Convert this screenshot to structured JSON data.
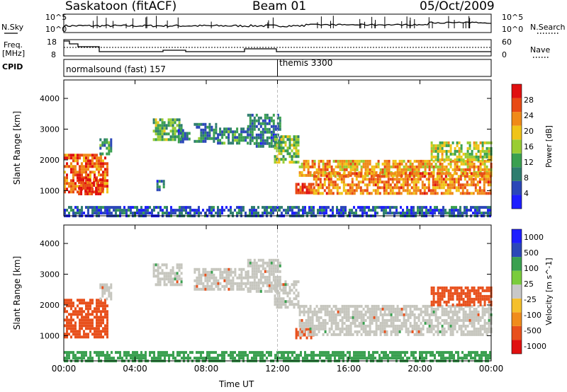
{
  "header": {
    "station": "Saskatoon (fitACF)",
    "beam": "Beam 01",
    "date": "05/Oct/2009"
  },
  "panels": {
    "nsky_label": "N.Sky",
    "nsearch_label": "N.Search",
    "freq_label_1": "Freq.",
    "freq_label_2": "[MHz]",
    "nave_label": "Nave",
    "cpid_label": "CPID",
    "noise_left_ticks": [
      "10^5",
      "10^0"
    ],
    "noise_right_ticks": [
      "10^5",
      "10^0"
    ],
    "freq_left_ticks": [
      "18",
      "8"
    ],
    "freq_right_ticks": [
      "60",
      "0"
    ],
    "cpid_segments": [
      {
        "start_hour": 0,
        "end_hour": 12,
        "text": "normalsound (fast) 157"
      },
      {
        "start_hour": 12,
        "end_hour": 24,
        "text": "themis 3300"
      }
    ]
  },
  "colors": {
    "power_scale": [
      "#1e1eff",
      "#2b47b8",
      "#2e7d6e",
      "#3aa050",
      "#9acd32",
      "#f0c418",
      "#f08a18",
      "#e84a14",
      "#e01010"
    ],
    "velocity_scale": [
      "#e01010",
      "#e8501c",
      "#f08c1c",
      "#f5c02c",
      "#c8c8c8",
      "#7acc3c",
      "#3aa050",
      "#2b47b8",
      "#1e1eff"
    ],
    "ground_scatter": "#c6c6be"
  },
  "chart_data": [
    {
      "type": "heatmap",
      "title": "",
      "xlabel": "Time UT",
      "ylabel": "Slant Range [km]",
      "xlim_hours": [
        0,
        24
      ],
      "ylim_km": [
        180,
        4600
      ],
      "x_ticks": [
        "00:00",
        "04:00",
        "08:00",
        "12:00",
        "16:00",
        "20:00",
        "00:00"
      ],
      "y_ticks": [
        "1000",
        "2000",
        "3000",
        "4000"
      ],
      "colorbar_label": "Power [dB]",
      "colorbar_ticks": [
        "4",
        "8",
        "12",
        "16",
        "20",
        "24",
        "28"
      ],
      "colorbar_range": [
        0,
        30
      ],
      "regions": [
        {
          "t0": 0.0,
          "t1": 2.4,
          "r0": 950,
          "r1": 2200,
          "value": 24
        },
        {
          "t0": 0.8,
          "t1": 2.2,
          "r0": 900,
          "r1": 1400,
          "value": 26
        },
        {
          "t0": 2.0,
          "t1": 2.6,
          "r0": 2200,
          "r1": 2700,
          "value": 10
        },
        {
          "t0": 5.0,
          "t1": 6.6,
          "r0": 2700,
          "r1": 3350,
          "value": 12
        },
        {
          "t0": 5.2,
          "t1": 5.6,
          "r0": 1000,
          "r1": 1350,
          "value": 8
        },
        {
          "t0": 6.4,
          "t1": 7.0,
          "r0": 2600,
          "r1": 3000,
          "value": 8
        },
        {
          "t0": 7.3,
          "t1": 8.6,
          "r0": 2600,
          "r1": 3200,
          "value": 9
        },
        {
          "t0": 8.6,
          "t1": 10.3,
          "r0": 2500,
          "r1": 3050,
          "value": 9
        },
        {
          "t0": 10.3,
          "t1": 12.1,
          "r0": 2400,
          "r1": 3500,
          "value": 8
        },
        {
          "t0": 11.8,
          "t1": 13.2,
          "r0": 1900,
          "r1": 2800,
          "value": 14
        },
        {
          "t0": 13.0,
          "t1": 14.0,
          "r0": 900,
          "r1": 1250,
          "value": 26
        },
        {
          "t0": 13.2,
          "t1": 24.0,
          "r0": 1500,
          "r1": 2000,
          "value": 20
        },
        {
          "t0": 14.0,
          "t1": 24.0,
          "r0": 900,
          "r1": 1600,
          "value": 22
        },
        {
          "t0": 20.6,
          "t1": 24.0,
          "r0": 2000,
          "r1": 2600,
          "value": 16
        },
        {
          "t0": 0.0,
          "t1": 24.0,
          "r0": 180,
          "r1": 500,
          "value": 6
        }
      ]
    },
    {
      "type": "heatmap",
      "title": "",
      "xlabel": "Time UT",
      "ylabel": "Slant Range [km]",
      "xlim_hours": [
        0,
        24
      ],
      "ylim_km": [
        180,
        4600
      ],
      "x_ticks": [
        "00:00",
        "04:00",
        "08:00",
        "12:00",
        "16:00",
        "20:00",
        "00:00"
      ],
      "y_ticks": [
        "1000",
        "2000",
        "3000",
        "4000"
      ],
      "colorbar_label": "Velocity [m s^-1]",
      "colorbar_ticks": [
        "1000",
        "500",
        "100",
        "25",
        "-25",
        "-100",
        "-500",
        "-1000"
      ],
      "regions": [
        {
          "t0": 0.0,
          "t1": 2.4,
          "r0": 950,
          "r1": 2200,
          "value": -100
        },
        {
          "t0": 2.0,
          "t1": 2.6,
          "r0": 2200,
          "r1": 2700,
          "value": 0
        },
        {
          "t0": 5.0,
          "t1": 6.6,
          "r0": 2700,
          "r1": 3350,
          "value": 0
        },
        {
          "t0": 7.3,
          "t1": 10.3,
          "r0": 2500,
          "r1": 3200,
          "value": 0
        },
        {
          "t0": 10.3,
          "t1": 12.1,
          "r0": 2400,
          "r1": 3500,
          "value": 0
        },
        {
          "t0": 11.8,
          "t1": 13.2,
          "r0": 1900,
          "r1": 2800,
          "value": 0
        },
        {
          "t0": 13.0,
          "t1": 14.0,
          "r0": 900,
          "r1": 1250,
          "value": -100
        },
        {
          "t0": 13.2,
          "t1": 24.0,
          "r0": 1000,
          "r1": 2000,
          "value": 0
        },
        {
          "t0": 20.6,
          "t1": 24.0,
          "r0": 2000,
          "r1": 2600,
          "value": -100
        },
        {
          "t0": 0.0,
          "t1": 24.0,
          "r0": 180,
          "r1": 500,
          "value": 100
        }
      ]
    }
  ]
}
